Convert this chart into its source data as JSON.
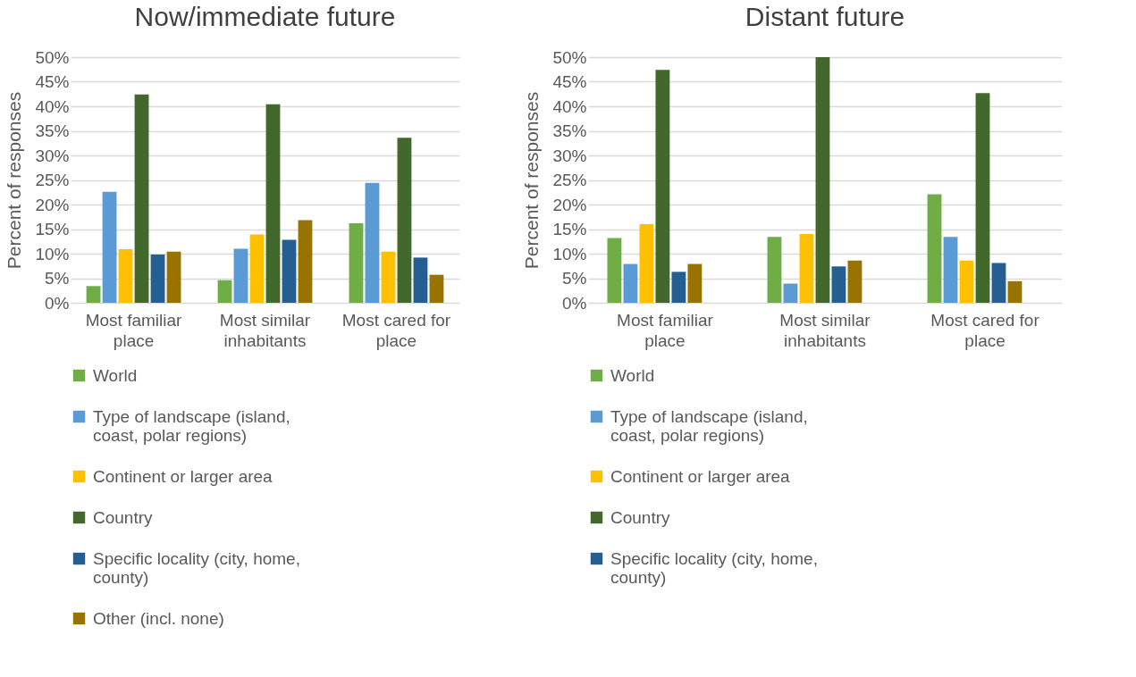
{
  "chart_data": [
    {
      "type": "bar",
      "title": "Now/immediate future",
      "ylabel": "Percent of responses",
      "categories": [
        "Most familiar place",
        "Most similar inhabitants",
        "Most cared for place"
      ],
      "series": [
        {
          "name": "World",
          "color": "#70ad47",
          "values": [
            3.4,
            4.6,
            16.2
          ]
        },
        {
          "name": "Type of landscape (island, coast, polar regions)",
          "color": "#5b9bd5",
          "values": [
            22.6,
            11.0,
            24.4
          ]
        },
        {
          "name": "Continent or larger area",
          "color": "#ffc000",
          "values": [
            10.9,
            13.9,
            10.4
          ]
        },
        {
          "name": "Country",
          "color": "#43682b",
          "values": [
            42.4,
            40.4,
            33.6
          ]
        },
        {
          "name": "Specific locality (city, home, county)",
          "color": "#255e91",
          "values": [
            9.8,
            12.8,
            9.2
          ]
        },
        {
          "name": "Other (incl. none)",
          "color": "#997300",
          "values": [
            10.4,
            16.8,
            5.7
          ]
        }
      ],
      "ylim": [
        0,
        50
      ],
      "yticks": [
        {
          "value": 0,
          "label": "0%"
        },
        {
          "value": 5,
          "label": "5%"
        },
        {
          "value": 10,
          "label": "10%"
        },
        {
          "value": 15,
          "label": "15%"
        },
        {
          "value": 20,
          "label": "20%"
        },
        {
          "value": 25,
          "label": "25%"
        },
        {
          "value": 30,
          "label": "30%"
        },
        {
          "value": 35,
          "label": "35%"
        },
        {
          "value": 40,
          "label": "40%"
        },
        {
          "value": 45,
          "label": "45%"
        },
        {
          "value": 50,
          "label": "50%"
        }
      ],
      "grid": "y",
      "legend": "bottom"
    },
    {
      "type": "bar",
      "title": "Distant future",
      "ylabel": "Percent of responses",
      "categories": [
        "Most familiar place",
        "Most similar inhabitants",
        "Most cared for place"
      ],
      "series": [
        {
          "name": "World",
          "color": "#70ad47",
          "values": [
            13.2,
            13.4,
            22.1
          ]
        },
        {
          "name": "Type of landscape (island, coast, polar regions)",
          "color": "#5b9bd5",
          "values": [
            7.9,
            3.9,
            13.4
          ]
        },
        {
          "name": "Continent or larger area",
          "color": "#ffc000",
          "values": [
            16.0,
            14.0,
            8.6
          ]
        },
        {
          "name": "Country",
          "color": "#43682b",
          "values": [
            47.4,
            50,
            42.7
          ]
        },
        {
          "name": "Specific locality (city, home, county)",
          "color": "#255e91",
          "values": [
            6.3,
            7.4,
            8.1
          ]
        },
        {
          "color": "#997300",
          "values": [
            7.9,
            8.6,
            4.4
          ]
        }
      ],
      "ylim": [
        0,
        50
      ],
      "yticks": [
        {
          "value": 0,
          "label": "0%"
        },
        {
          "value": 5,
          "label": "5%"
        },
        {
          "value": 10,
          "label": "10%"
        },
        {
          "value": 15,
          "label": "15%"
        },
        {
          "value": 20,
          "label": "20%"
        },
        {
          "value": 25,
          "label": "25%"
        },
        {
          "value": 30,
          "label": "30%"
        },
        {
          "value": 35,
          "label": "35%"
        },
        {
          "value": 40,
          "label": "40%"
        },
        {
          "value": 45,
          "label": "45%"
        },
        {
          "value": 50,
          "label": "50%"
        }
      ],
      "grid": "y",
      "legend": "bottom"
    }
  ]
}
